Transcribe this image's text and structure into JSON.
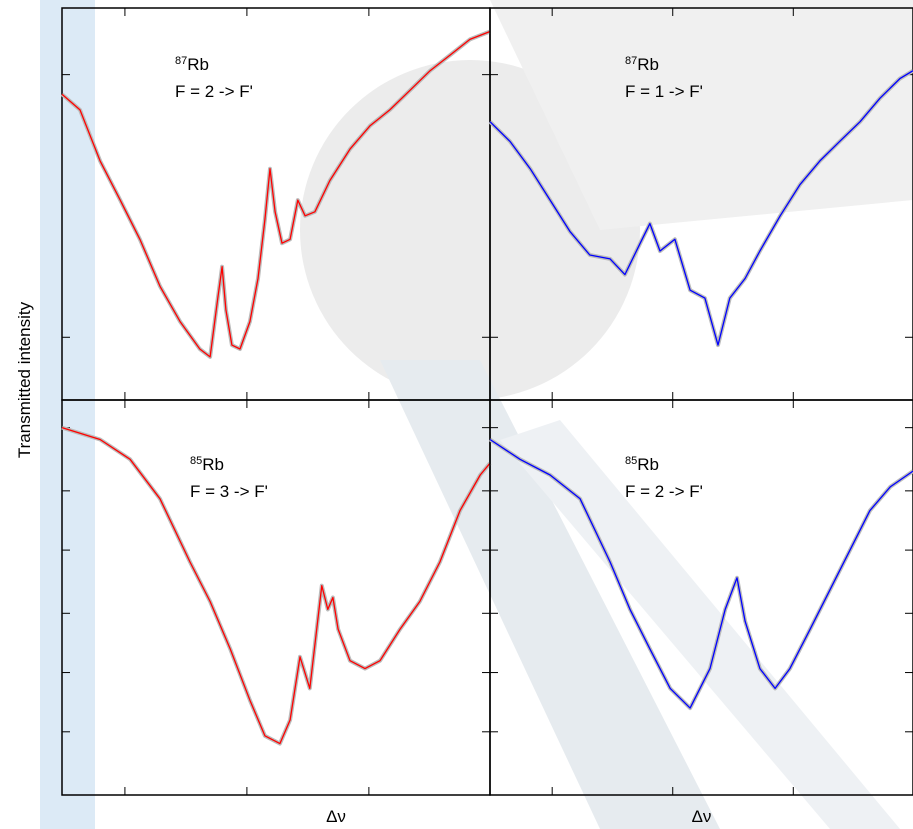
{
  "y_label": "Transmitted intensity",
  "chart_data": [
    {
      "type": "line",
      "isotope": "87",
      "element": "Rb",
      "transition": "F = 2 -> F'",
      "color": "#ff0000",
      "xlim": [
        0,
        100
      ],
      "ylim": [
        0,
        100
      ],
      "x": [
        0,
        4.2,
        8.9,
        13.6,
        18.2,
        22.9,
        27.6,
        32.2,
        34.6,
        36.4,
        37.4,
        38.3,
        39.7,
        41.6,
        43.9,
        45.8,
        47.4,
        48.6,
        49.8,
        51.4,
        53.3,
        55.1,
        56.8,
        59.1,
        62.6,
        67.3,
        72,
        76.6,
        81.3,
        86,
        90.7,
        95.3,
        100
      ],
      "values": [
        78,
        74,
        61,
        51,
        41,
        29,
        20,
        13,
        11,
        26,
        34,
        23,
        14,
        13,
        20,
        31,
        46,
        59,
        48,
        40,
        41,
        51,
        47,
        48,
        56,
        64,
        70,
        74,
        79,
        84,
        88,
        92,
        94
      ]
    },
    {
      "type": "line",
      "isotope": "87",
      "element": "Rb",
      "transition": "F = 1 -> F'",
      "color": "#0000ff",
      "xlim": [
        0,
        100
      ],
      "ylim": [
        0,
        100
      ],
      "x": [
        0,
        4.7,
        9.5,
        14.2,
        18.9,
        23.6,
        28.4,
        31.9,
        35.5,
        37.8,
        40.2,
        43.7,
        47.3,
        50.8,
        53.9,
        56.7,
        60.3,
        63.8,
        68.6,
        73.3,
        78,
        82.7,
        87.5,
        92.2,
        96.9,
        100
      ],
      "values": [
        71,
        66,
        59,
        51,
        43,
        37,
        36,
        32,
        40,
        45,
        38,
        41,
        28,
        26,
        14,
        26,
        31,
        38,
        47,
        55,
        61,
        66,
        71,
        77,
        82,
        84
      ]
    },
    {
      "type": "line",
      "isotope": "85",
      "element": "Rb",
      "transition": "F = 3 -> F'",
      "color": "#ff0000",
      "x_label": "Δν",
      "xlim": [
        0,
        100
      ],
      "ylim": [
        0,
        100
      ],
      "x": [
        0,
        8.9,
        15.9,
        22.9,
        29.9,
        34.6,
        39.3,
        43.9,
        47.4,
        50.9,
        53.3,
        55.6,
        57.9,
        60.7,
        62.1,
        63.3,
        64.5,
        67.3,
        70.8,
        74.3,
        79,
        83.6,
        88.3,
        93,
        97.7,
        100
      ],
      "values": [
        93,
        90,
        85,
        75,
        59,
        49,
        37,
        24,
        15,
        13,
        19,
        35,
        27,
        53,
        47,
        50,
        42,
        34,
        32,
        34,
        42,
        49,
        59,
        72,
        81,
        84
      ]
    },
    {
      "type": "line",
      "isotope": "85",
      "element": "Rb",
      "transition": "F = 2 -> F'",
      "color": "#0000ff",
      "x_label": "Δν",
      "xlim": [
        0,
        100
      ],
      "ylim": [
        0,
        100
      ],
      "x": [
        0,
        7.1,
        14.2,
        21.3,
        28.4,
        33.1,
        37.8,
        42.6,
        47.3,
        52,
        55.6,
        58.4,
        60.3,
        63.8,
        67.4,
        70.9,
        75.7,
        80.4,
        85.1,
        89.8,
        94.6,
        100
      ],
      "values": [
        90,
        85,
        81,
        75,
        59,
        47,
        37,
        27,
        22,
        32,
        47,
        55,
        44,
        32,
        27,
        32,
        42,
        52,
        62,
        72,
        78,
        82
      ]
    }
  ]
}
